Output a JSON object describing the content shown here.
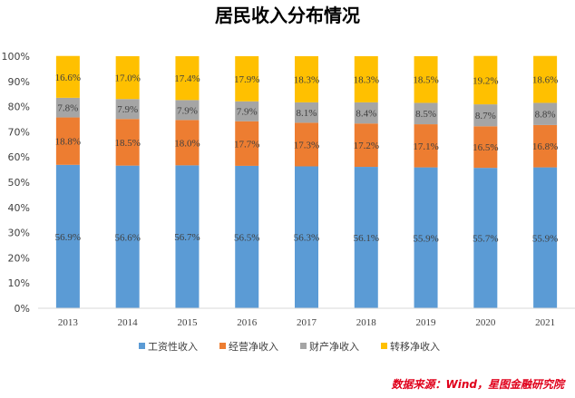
{
  "chart_data": {
    "type": "bar",
    "stacked": true,
    "title": "居民收入分布情况",
    "categories": [
      "2013",
      "2014",
      "2015",
      "2016",
      "2017",
      "2018",
      "2019",
      "2020",
      "2021"
    ],
    "series": [
      {
        "name": "工资性收入",
        "color": "#5B9BD5",
        "values": [
          56.9,
          56.6,
          56.7,
          56.5,
          56.3,
          56.1,
          55.9,
          55.7,
          55.9
        ],
        "labels": [
          "56.9%",
          "56.6%",
          "56.7%",
          "56.5%",
          "56.3%",
          "56.1%",
          "55.9%",
          "55.7%",
          "55.9%"
        ]
      },
      {
        "name": "经营净收入",
        "color": "#ED7D31",
        "values": [
          18.8,
          18.5,
          18.0,
          17.7,
          17.3,
          17.2,
          17.1,
          16.5,
          16.8
        ],
        "labels": [
          "18.8%",
          "18.5%",
          "18.0%",
          "17.7%",
          "17.3%",
          "17.2%",
          "17.1%",
          "16.5%",
          "16.8%"
        ]
      },
      {
        "name": "财产净收入",
        "color": "#A5A5A5",
        "values": [
          7.8,
          7.9,
          7.9,
          7.9,
          8.1,
          8.4,
          8.5,
          8.7,
          8.8
        ],
        "labels": [
          "7.8%",
          "7.9%",
          "7.9%",
          "7.9%",
          "8.1%",
          "8.4%",
          "8.5%",
          "8.7%",
          "8.8%"
        ]
      },
      {
        "name": "转移净收入",
        "color": "#FFC000",
        "values": [
          16.6,
          17.0,
          17.4,
          17.9,
          18.3,
          18.3,
          18.5,
          19.2,
          18.6
        ],
        "labels": [
          "16.6%",
          "17.0%",
          "17.4%",
          "17.9%",
          "18.3%",
          "18.3%",
          "18.5%",
          "19.2%",
          "18.6%"
        ]
      }
    ],
    "yticks": [
      "0%",
      "10%",
      "20%",
      "30%",
      "40%",
      "50%",
      "60%",
      "70%",
      "80%",
      "90%",
      "100%"
    ],
    "ylim": [
      0,
      100
    ],
    "grid": false,
    "legend_position": "bottom"
  },
  "source_note": "数据来源：Wind，星图金融研究院"
}
